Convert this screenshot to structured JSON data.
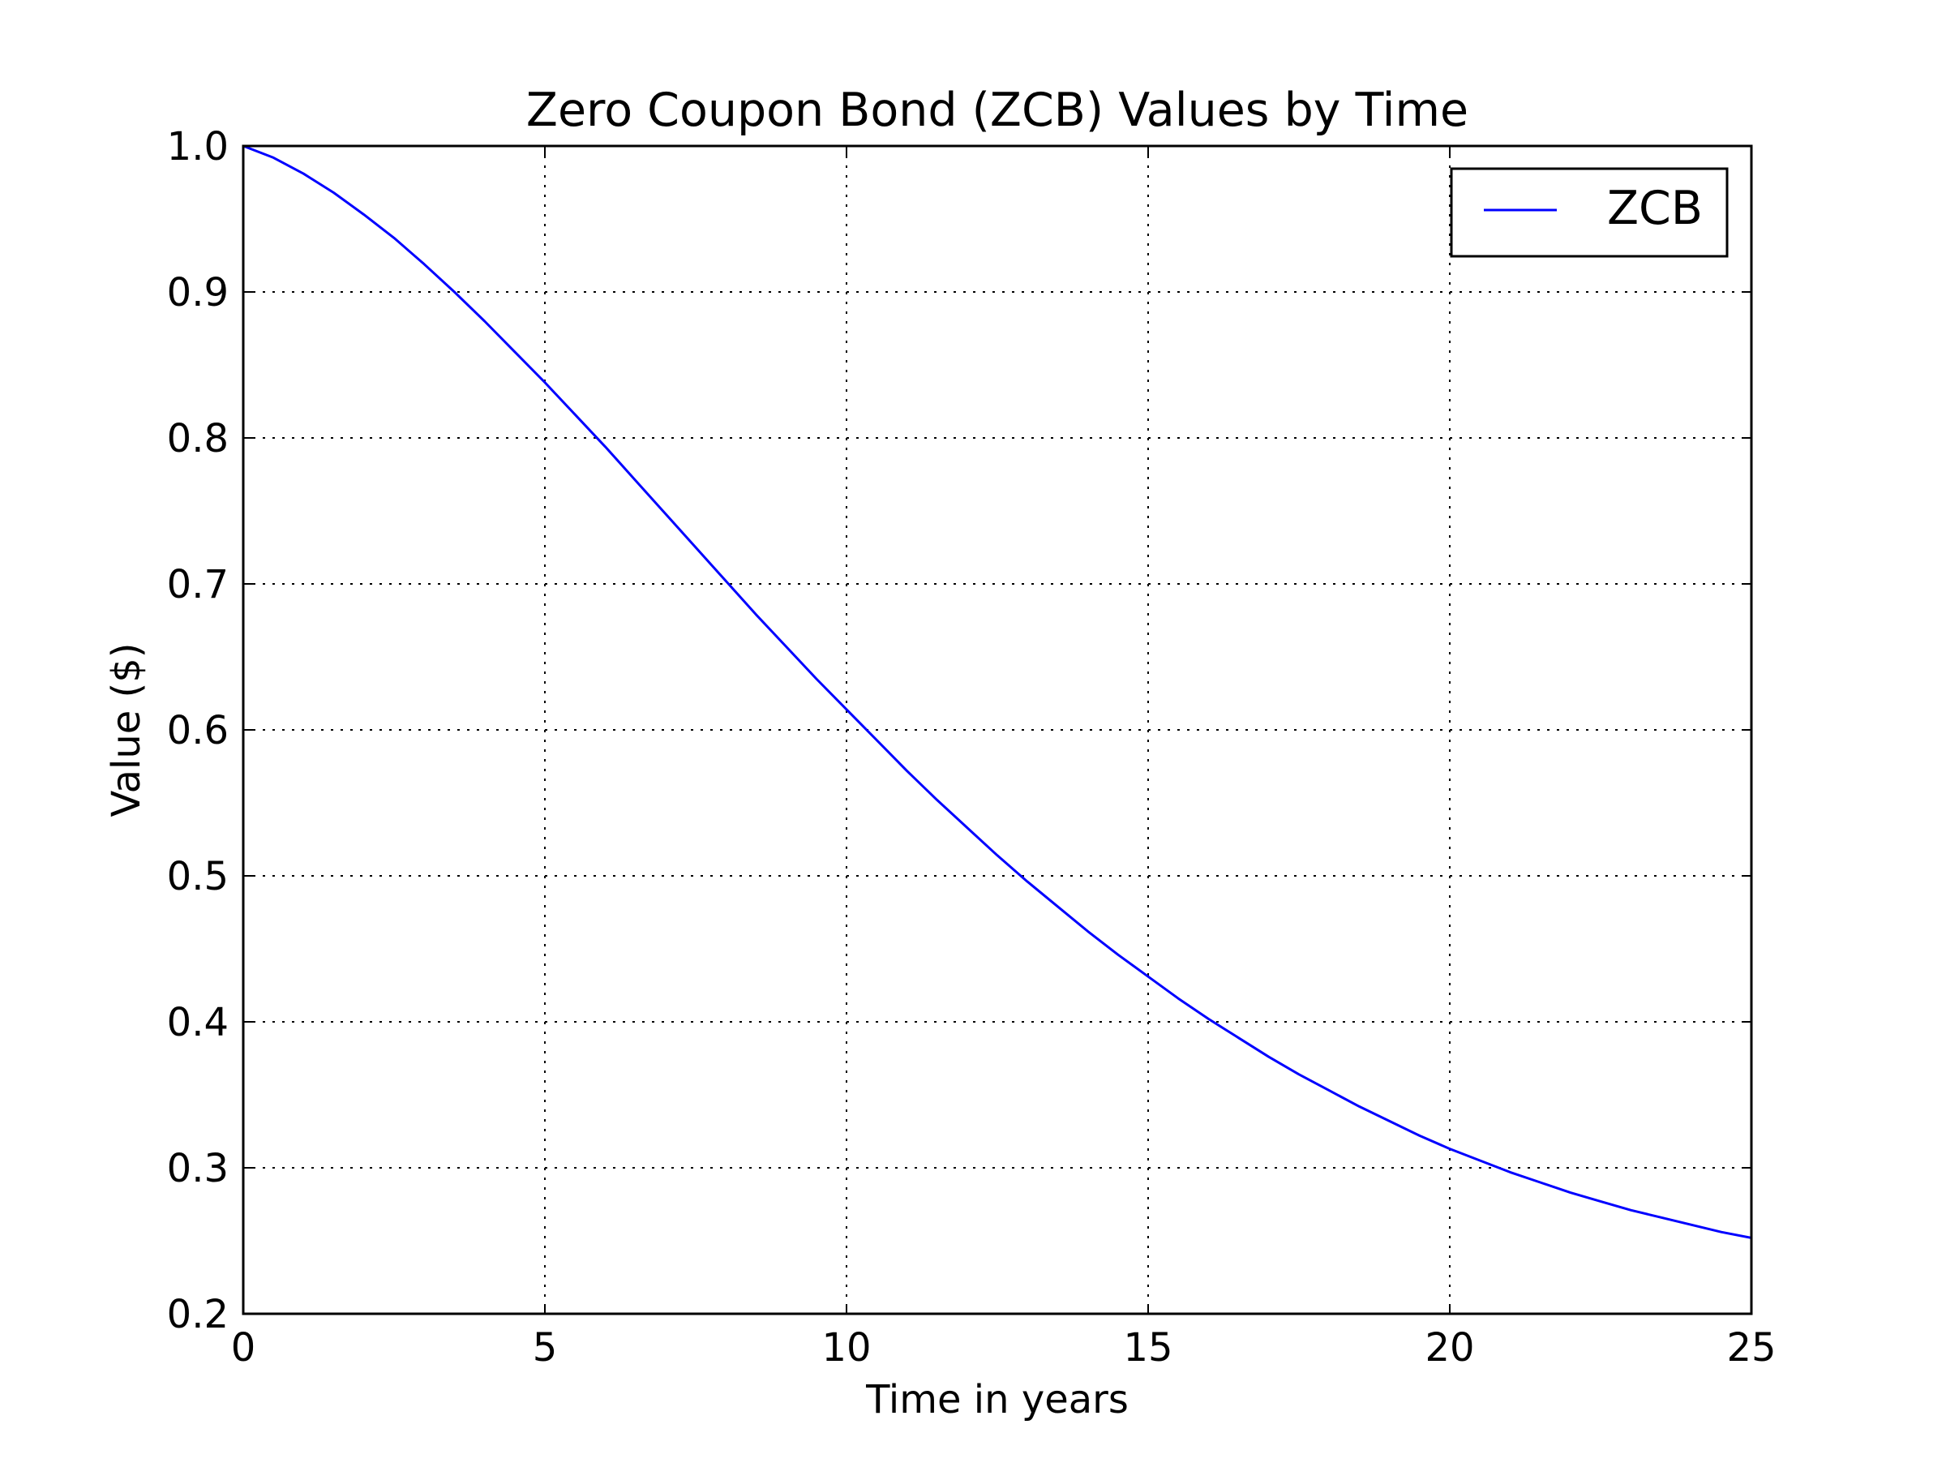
{
  "chart_data": {
    "type": "line",
    "title": "Zero Coupon Bond (ZCB) Values by Time",
    "xlabel": "Time in years",
    "ylabel": "Value ($)",
    "xlim": [
      0,
      25
    ],
    "ylim": [
      0.2,
      1.0
    ],
    "xticks": [
      "0",
      "5",
      "10",
      "15",
      "20",
      "25"
    ],
    "yticks": [
      "0.2",
      "0.3",
      "0.4",
      "0.5",
      "0.6",
      "0.7",
      "0.8",
      "0.9",
      "1.0"
    ],
    "grid": true,
    "legend_position": "top-right",
    "series": [
      {
        "name": "ZCB",
        "color": "#0000ff",
        "x": [
          0,
          0.5,
          1,
          1.5,
          2,
          2.5,
          3,
          3.5,
          4,
          4.5,
          5,
          5.5,
          6,
          6.5,
          7,
          7.5,
          8,
          8.5,
          9,
          9.5,
          10,
          10.5,
          11,
          11.5,
          12,
          12.5,
          13,
          13.5,
          14,
          14.5,
          15,
          15.5,
          16,
          16.5,
          17,
          17.5,
          18,
          18.5,
          19,
          19.5,
          20,
          20.5,
          21,
          21.5,
          22,
          22.5,
          23,
          23.5,
          24,
          24.5,
          25
        ],
        "y": [
          1.0,
          0.992,
          0.981,
          0.968,
          0.953,
          0.937,
          0.919,
          0.9,
          0.88,
          0.859,
          0.838,
          0.816,
          0.794,
          0.771,
          0.748,
          0.725,
          0.702,
          0.679,
          0.657,
          0.635,
          0.614,
          0.593,
          0.572,
          0.552,
          0.533,
          0.514,
          0.496,
          0.479,
          0.462,
          0.446,
          0.431,
          0.416,
          0.402,
          0.389,
          0.376,
          0.364,
          0.353,
          0.342,
          0.332,
          0.322,
          0.313,
          0.305,
          0.297,
          0.29,
          0.283,
          0.277,
          0.271,
          0.266,
          0.261,
          0.256,
          0.252
        ]
      }
    ]
  }
}
